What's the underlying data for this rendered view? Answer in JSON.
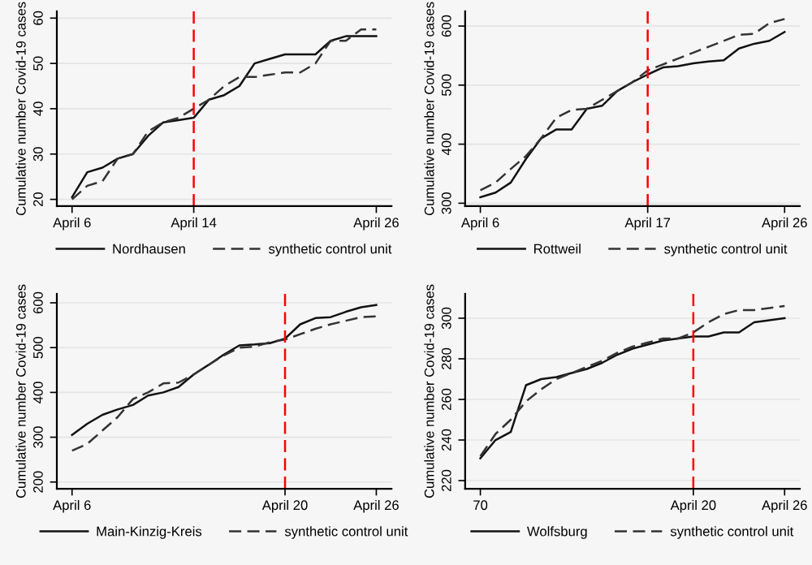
{
  "chart_data": [
    {
      "type": "line",
      "ylabel": "Cumulative number Covid-19 cases",
      "categories": [
        "April 6",
        null,
        null,
        null,
        null,
        null,
        null,
        null,
        "April 14",
        null,
        null,
        null,
        null,
        null,
        null,
        null,
        null,
        null,
        null,
        null,
        "April 26"
      ],
      "series": [
        {
          "name": "Nordhausen",
          "color": "#111111",
          "line_style": "solid",
          "values": [
            20.5,
            26,
            27,
            29,
            30,
            34,
            37,
            37.5,
            38,
            42,
            43,
            45,
            50,
            51,
            52,
            52,
            52,
            55,
            56,
            56,
            56
          ]
        },
        {
          "name": "synthetic control unit",
          "color": "#333333",
          "line_style": "dashed",
          "values": [
            20,
            23,
            24,
            29,
            30,
            35,
            37,
            38,
            40,
            42,
            45,
            47,
            47,
            47.5,
            48,
            48,
            50,
            55,
            55,
            57.5,
            57.5
          ]
        }
      ],
      "ylim": [
        18.5,
        61.5
      ],
      "yticks": [
        20,
        30,
        40,
        50,
        60
      ],
      "grid": "y",
      "legend": "bottom",
      "ref_lines": [
        {
          "axis": "x",
          "value": "April 14",
          "color": "#ff0000",
          "line_style": "dashed"
        }
      ]
    },
    {
      "type": "line",
      "ylabel": "Cumulative number Covid-19 cases",
      "categories": [
        "April 6",
        null,
        null,
        null,
        null,
        null,
        null,
        null,
        null,
        null,
        null,
        "April 17",
        null,
        null,
        null,
        null,
        null,
        null,
        null,
        null,
        "April 26"
      ],
      "series": [
        {
          "name": "Rottweil",
          "color": "#111111",
          "line_style": "solid",
          "values": [
            310,
            318,
            335,
            375,
            410,
            425,
            425,
            460,
            465,
            490,
            505,
            518,
            530,
            532,
            537,
            540,
            542,
            562,
            570,
            575,
            590
          ]
        },
        {
          "name": "synthetic control unit",
          "color": "#333333",
          "line_style": "dashed",
          "values": [
            322,
            335,
            358,
            380,
            410,
            445,
            458,
            460,
            475,
            490,
            505,
            525,
            535,
            545,
            555,
            565,
            575,
            585,
            587,
            605,
            612
          ]
        }
      ],
      "ylim": [
        295,
        625
      ],
      "yticks": [
        300,
        400,
        500,
        600
      ],
      "grid": "y",
      "legend": "bottom",
      "ref_lines": [
        {
          "axis": "x",
          "value": "April 17",
          "color": "#ff0000",
          "line_style": "dashed"
        }
      ]
    },
    {
      "type": "line",
      "ylabel": "Cumulative number Covid-19 cases",
      "categories": [
        "April 6",
        null,
        null,
        null,
        null,
        null,
        null,
        null,
        null,
        null,
        null,
        null,
        null,
        null,
        "April 20",
        null,
        null,
        null,
        null,
        null,
        "April 26"
      ],
      "series": [
        {
          "name": "Main-Kinzig-Kreis",
          "color": "#111111",
          "line_style": "solid",
          "values": [
            305,
            330,
            350,
            362,
            372,
            393,
            400,
            412,
            440,
            462,
            485,
            505,
            507,
            510,
            520,
            552,
            566,
            568,
            580,
            590,
            595
          ]
        },
        {
          "name": "synthetic control unit",
          "color": "#333333",
          "line_style": "dashed",
          "values": [
            270,
            285,
            315,
            345,
            385,
            400,
            420,
            422,
            440,
            462,
            483,
            500,
            502,
            512,
            518,
            530,
            542,
            552,
            560,
            568,
            570
          ]
        }
      ],
      "ylim": [
        185,
        620
      ],
      "yticks": [
        200,
        300,
        400,
        500,
        600
      ],
      "grid": "y",
      "legend": "bottom",
      "ref_lines": [
        {
          "axis": "x",
          "value": "April 20",
          "color": "#ff0000",
          "line_style": "dashed"
        }
      ]
    },
    {
      "type": "line",
      "ylabel": "Cumulative number Covid-19 cases",
      "categories": [
        "70",
        null,
        null,
        null,
        null,
        null,
        null,
        null,
        null,
        null,
        null,
        null,
        null,
        null,
        "April 20",
        null,
        null,
        null,
        null,
        null,
        "April 26"
      ],
      "series": [
        {
          "name": "Wolfsburg",
          "color": "#111111",
          "line_style": "solid",
          "values": [
            231,
            240,
            244,
            267,
            270,
            271,
            273,
            275,
            278,
            282,
            285,
            287,
            289,
            290,
            291,
            291,
            293,
            293,
            298,
            299,
            300
          ]
        },
        {
          "name": "synthetic control unit",
          "color": "#333333",
          "line_style": "dashed",
          "values": [
            232,
            243,
            250,
            259,
            265,
            270,
            273,
            276,
            279,
            283,
            286,
            288,
            290,
            290,
            293,
            298,
            302,
            304,
            304,
            305,
            306
          ]
        }
      ],
      "ylim": [
        216,
        312
      ],
      "yticks": [
        220,
        240,
        260,
        280,
        300
      ],
      "grid": "y",
      "legend": "bottom",
      "ref_lines": [
        {
          "axis": "x",
          "value": "April 20",
          "color": "#ff0000",
          "line_style": "dashed"
        }
      ]
    }
  ]
}
